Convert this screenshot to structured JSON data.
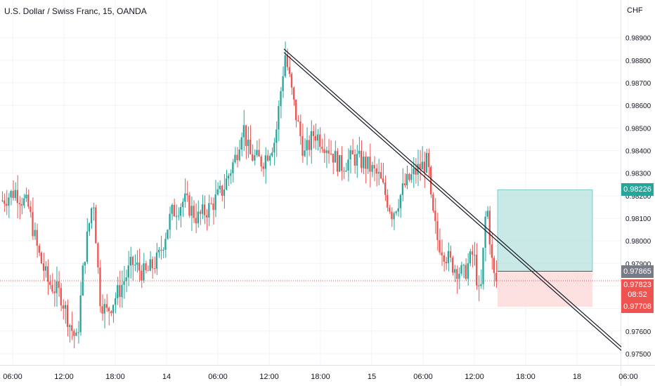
{
  "header": {
    "symbol_title": "U.S. Dollar / Swiss Franc, 15, OANDA",
    "currency": "CHF"
  },
  "chart_data": {
    "type": "candlestick",
    "symbol": "U.S. Dollar / Swiss Franc",
    "interval": "15",
    "source": "OANDA",
    "ylim": [
      0.9745,
      0.9898
    ],
    "y_ticks": [
      "0.98900",
      "0.98800",
      "0.98700",
      "0.98600",
      "0.98500",
      "0.98400",
      "0.98300",
      "0.98200",
      "0.98100",
      "0.98000",
      "0.97900",
      "0.97800",
      "0.97700",
      "0.97600",
      "0.97500"
    ],
    "x_ticks": [
      "06:00",
      "12:00",
      "18:00",
      "14",
      "06:00",
      "12:00",
      "18:00",
      "15",
      "06:00",
      "12:00",
      "18:00",
      "18",
      "06:00"
    ],
    "grid": true,
    "price_path": [
      [
        0,
        0.9818
      ],
      [
        0.02,
        0.9822
      ],
      [
        0.04,
        0.9815
      ],
      [
        0.055,
        0.9795
      ],
      [
        0.07,
        0.9782
      ],
      [
        0.09,
        0.9776
      ],
      [
        0.105,
        0.9762
      ],
      [
        0.115,
        0.9755
      ],
      [
        0.125,
        0.979
      ],
      [
        0.14,
        0.982
      ],
      [
        0.15,
        0.9775
      ],
      [
        0.16,
        0.9768
      ],
      [
        0.18,
        0.9778
      ],
      [
        0.2,
        0.979
      ],
      [
        0.22,
        0.9785
      ],
      [
        0.24,
        0.9792
      ],
      [
        0.26,
        0.9812
      ],
      [
        0.28,
        0.9818
      ],
      [
        0.3,
        0.981
      ],
      [
        0.32,
        0.9815
      ],
      [
        0.34,
        0.9823
      ],
      [
        0.36,
        0.9838
      ],
      [
        0.37,
        0.9852
      ],
      [
        0.38,
        0.9838
      ],
      [
        0.4,
        0.9835
      ],
      [
        0.42,
        0.9845
      ],
      [
        0.435,
        0.9883
      ],
      [
        0.45,
        0.9858
      ],
      [
        0.465,
        0.9838
      ],
      [
        0.48,
        0.9848
      ],
      [
        0.5,
        0.9842
      ],
      [
        0.52,
        0.9833
      ],
      [
        0.54,
        0.9837
      ],
      [
        0.56,
        0.9834
      ],
      [
        0.58,
        0.9828
      ],
      [
        0.6,
        0.9812
      ],
      [
        0.62,
        0.9825
      ],
      [
        0.64,
        0.9832
      ],
      [
        0.655,
        0.9835
      ],
      [
        0.66,
        0.9815
      ],
      [
        0.67,
        0.98
      ],
      [
        0.69,
        0.979
      ],
      [
        0.71,
        0.9785
      ],
      [
        0.725,
        0.9795
      ],
      [
        0.735,
        0.9772
      ],
      [
        0.745,
        0.9818
      ],
      [
        0.755,
        0.9785
      ],
      [
        0.76,
        0.9782
      ]
    ],
    "last_price": 0.97823,
    "trendline": {
      "from": [
        "12:00 (13th)",
        0.9885
      ],
      "to": [
        "18 06:00",
        0.9755
      ]
    },
    "position": {
      "side": "short",
      "entry": 0.97865,
      "target": 0.97708,
      "stop": 0.98226
    },
    "price_labels": {
      "stop": "0.98226",
      "entry": "0.97865",
      "last": "0.97823",
      "countdown": "08:52",
      "target": "0.97708"
    },
    "colors": {
      "up": "#26a69a",
      "down": "#ef5350",
      "profit_zone": "#b2dfdb",
      "loss_zone": "#fcd9d9",
      "entry_tag": "#787b86",
      "text": "#131722",
      "grid": "#f0f3fa"
    }
  }
}
